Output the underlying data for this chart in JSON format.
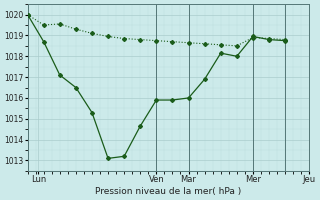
{
  "xlabel": "Pression niveau de la mer( hPa )",
  "background_color": "#cceaea",
  "plot_bg_color": "#cceaea",
  "grid_major_color": "#aacccc",
  "grid_minor_color": "#bbdddd",
  "line_color": "#1a5c1a",
  "ylim": [
    1012.5,
    1020.5
  ],
  "xlim": [
    0,
    192
  ],
  "day_labels": [
    "Lun",
    "Ven",
    "Mar",
    "Mer",
    "Jeu"
  ],
  "day_positions": [
    0,
    96,
    120,
    168,
    216
  ],
  "dotted_x": [
    0,
    12,
    24,
    36,
    48,
    60,
    72,
    84,
    96,
    108,
    120,
    132,
    144,
    156,
    168,
    180,
    192
  ],
  "dotted_y": [
    1020.0,
    1019.5,
    1019.55,
    1019.3,
    1019.1,
    1018.95,
    1018.85,
    1018.8,
    1018.75,
    1018.7,
    1018.65,
    1018.6,
    1018.55,
    1018.5,
    1018.9,
    1018.85,
    1018.8
  ],
  "solid_x": [
    0,
    12,
    24,
    36,
    48,
    60,
    72,
    84,
    96,
    108,
    120,
    132,
    144,
    156,
    168,
    180,
    192
  ],
  "solid_y": [
    1020.0,
    1018.7,
    1017.1,
    1016.5,
    1015.3,
    1013.1,
    1013.2,
    1014.65,
    1015.9,
    1015.9,
    1016.0,
    1016.9,
    1018.15,
    1018.0,
    1018.95,
    1018.8,
    1018.75
  ],
  "yticks": [
    1013,
    1014,
    1015,
    1016,
    1017,
    1018,
    1019,
    1020
  ]
}
